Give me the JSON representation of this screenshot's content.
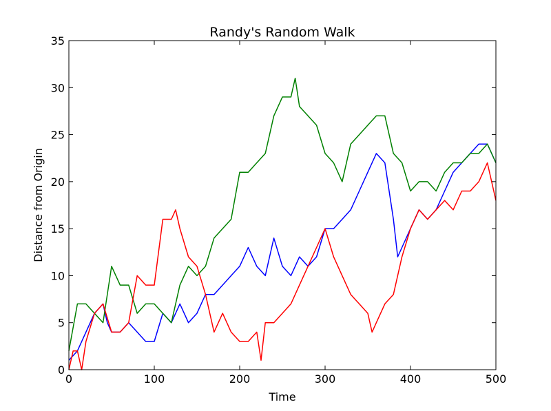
{
  "chart_data": {
    "type": "line",
    "title": "Randy's Random Walk",
    "xlabel": "Time",
    "ylabel": "Distance from Origin",
    "xlim": [
      0,
      500
    ],
    "ylim": [
      0,
      35
    ],
    "xticks": [
      0,
      100,
      200,
      300,
      400,
      500
    ],
    "yticks": [
      0,
      5,
      10,
      15,
      20,
      25,
      30,
      35
    ],
    "grid": false,
    "legend": "none",
    "series": [
      {
        "color": "#0000ff",
        "points": [
          [
            0,
            1
          ],
          [
            10,
            2
          ],
          [
            20,
            4
          ],
          [
            30,
            6
          ],
          [
            40,
            7
          ],
          [
            45,
            5
          ],
          [
            50,
            4
          ],
          [
            60,
            4
          ],
          [
            70,
            5
          ],
          [
            80,
            4
          ],
          [
            90,
            3
          ],
          [
            100,
            3
          ],
          [
            110,
            6
          ],
          [
            120,
            5
          ],
          [
            130,
            7
          ],
          [
            140,
            5
          ],
          [
            150,
            6
          ],
          [
            160,
            8
          ],
          [
            170,
            8
          ],
          [
            180,
            9
          ],
          [
            190,
            10
          ],
          [
            200,
            11
          ],
          [
            210,
            13
          ],
          [
            220,
            11
          ],
          [
            230,
            10
          ],
          [
            240,
            14
          ],
          [
            250,
            11
          ],
          [
            260,
            10
          ],
          [
            270,
            12
          ],
          [
            280,
            11
          ],
          [
            290,
            12
          ],
          [
            300,
            15
          ],
          [
            310,
            15
          ],
          [
            320,
            16
          ],
          [
            330,
            17
          ],
          [
            340,
            19
          ],
          [
            350,
            21
          ],
          [
            360,
            23
          ],
          [
            370,
            22
          ],
          [
            380,
            16
          ],
          [
            385,
            12
          ],
          [
            390,
            13
          ],
          [
            400,
            15
          ],
          [
            410,
            17
          ],
          [
            420,
            16
          ],
          [
            430,
            17
          ],
          [
            440,
            19
          ],
          [
            450,
            21
          ],
          [
            460,
            22
          ],
          [
            470,
            23
          ],
          [
            480,
            24
          ],
          [
            490,
            24
          ],
          [
            500,
            22
          ]
        ]
      },
      {
        "color": "#008000",
        "points": [
          [
            0,
            2
          ],
          [
            10,
            7
          ],
          [
            20,
            7
          ],
          [
            30,
            6
          ],
          [
            40,
            5
          ],
          [
            50,
            11
          ],
          [
            60,
            9
          ],
          [
            70,
            9
          ],
          [
            80,
            6
          ],
          [
            90,
            7
          ],
          [
            100,
            7
          ],
          [
            110,
            6
          ],
          [
            120,
            5
          ],
          [
            130,
            9
          ],
          [
            140,
            11
          ],
          [
            150,
            10
          ],
          [
            160,
            11
          ],
          [
            170,
            14
          ],
          [
            180,
            15
          ],
          [
            190,
            16
          ],
          [
            200,
            21
          ],
          [
            210,
            21
          ],
          [
            220,
            22
          ],
          [
            230,
            23
          ],
          [
            240,
            27
          ],
          [
            250,
            29
          ],
          [
            260,
            29
          ],
          [
            265,
            31
          ],
          [
            270,
            28
          ],
          [
            280,
            27
          ],
          [
            290,
            26
          ],
          [
            300,
            23
          ],
          [
            310,
            22
          ],
          [
            320,
            20
          ],
          [
            330,
            24
          ],
          [
            340,
            25
          ],
          [
            350,
            26
          ],
          [
            360,
            27
          ],
          [
            370,
            27
          ],
          [
            380,
            23
          ],
          [
            390,
            22
          ],
          [
            400,
            19
          ],
          [
            410,
            20
          ],
          [
            420,
            20
          ],
          [
            430,
            19
          ],
          [
            440,
            21
          ],
          [
            450,
            22
          ],
          [
            460,
            22
          ],
          [
            470,
            23
          ],
          [
            480,
            23
          ],
          [
            490,
            24
          ],
          [
            500,
            22
          ]
        ]
      },
      {
        "color": "#ff0000",
        "points": [
          [
            0,
            0
          ],
          [
            5,
            2
          ],
          [
            10,
            2
          ],
          [
            15,
            0
          ],
          [
            20,
            3
          ],
          [
            30,
            6
          ],
          [
            40,
            7
          ],
          [
            50,
            4
          ],
          [
            60,
            4
          ],
          [
            70,
            5
          ],
          [
            80,
            10
          ],
          [
            90,
            9
          ],
          [
            100,
            9
          ],
          [
            110,
            16
          ],
          [
            120,
            16
          ],
          [
            125,
            17
          ],
          [
            130,
            15
          ],
          [
            140,
            12
          ],
          [
            150,
            11
          ],
          [
            160,
            8
          ],
          [
            170,
            4
          ],
          [
            180,
            6
          ],
          [
            190,
            4
          ],
          [
            200,
            3
          ],
          [
            210,
            3
          ],
          [
            220,
            4
          ],
          [
            225,
            1
          ],
          [
            230,
            5
          ],
          [
            240,
            5
          ],
          [
            250,
            6
          ],
          [
            260,
            7
          ],
          [
            270,
            9
          ],
          [
            280,
            11
          ],
          [
            290,
            13
          ],
          [
            300,
            15
          ],
          [
            310,
            12
          ],
          [
            320,
            10
          ],
          [
            330,
            8
          ],
          [
            340,
            7
          ],
          [
            350,
            6
          ],
          [
            355,
            4
          ],
          [
            360,
            5
          ],
          [
            370,
            7
          ],
          [
            380,
            8
          ],
          [
            390,
            12
          ],
          [
            400,
            15
          ],
          [
            410,
            17
          ],
          [
            420,
            16
          ],
          [
            430,
            17
          ],
          [
            440,
            18
          ],
          [
            450,
            17
          ],
          [
            460,
            19
          ],
          [
            470,
            19
          ],
          [
            480,
            20
          ],
          [
            490,
            22
          ],
          [
            500,
            18
          ]
        ]
      }
    ]
  }
}
